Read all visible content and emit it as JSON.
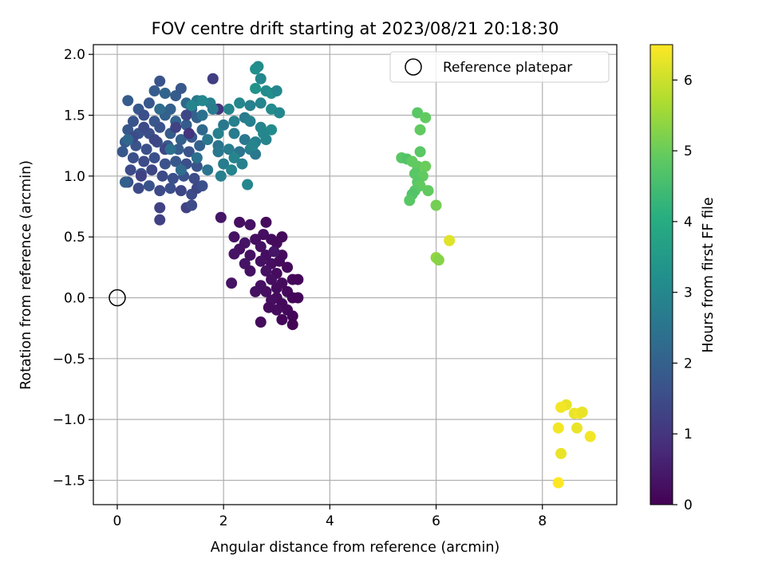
{
  "chart_data": {
    "type": "scatter",
    "title": "FOV centre drift starting at 2023/08/21 20:18:30",
    "xlabel": "Angular distance from reference (arcmin)",
    "ylabel": "Rotation from reference (arcmin)",
    "xlim": [
      -0.45,
      9.4
    ],
    "ylim": [
      -1.7,
      2.08
    ],
    "xticks": [
      0,
      2,
      4,
      6,
      8
    ],
    "yticks": [
      -1.5,
      -1.0,
      -0.5,
      0.0,
      0.5,
      1.0,
      1.5,
      2.0
    ],
    "xtick_labels": [
      "0",
      "2",
      "4",
      "6",
      "8"
    ],
    "ytick_labels": [
      "−1.5",
      "−1.0",
      "−0.5",
      "0.0",
      "0.5",
      "1.0",
      "1.5",
      "2.0"
    ],
    "grid": true,
    "legend": {
      "placement": "top-right",
      "entries": [
        {
          "label": "Reference platepar",
          "marker": "open-circle"
        }
      ]
    },
    "reference_point": {
      "x": 0,
      "y": 0
    },
    "colormap": "viridis",
    "colorbar": {
      "label": "Hours from first FF file",
      "range": [
        0,
        6.5
      ],
      "ticks": [
        0,
        1,
        2,
        3,
        4,
        5,
        6
      ],
      "tick_labels": [
        "0",
        "1",
        "2",
        "3",
        "4",
        "5",
        "6"
      ]
    },
    "points": [
      [
        2.3,
        0.62,
        0.25
      ],
      [
        2.5,
        0.6,
        0.3
      ],
      [
        2.8,
        0.62,
        0.2
      ],
      [
        2.2,
        0.5,
        0.3
      ],
      [
        2.4,
        0.45,
        0.35
      ],
      [
        2.6,
        0.48,
        0.25
      ],
      [
        2.9,
        0.48,
        0.2
      ],
      [
        3.1,
        0.5,
        0.15
      ],
      [
        2.3,
        0.4,
        0.3
      ],
      [
        2.7,
        0.42,
        0.3
      ],
      [
        3.0,
        0.45,
        0.2
      ],
      [
        2.2,
        0.36,
        0.35
      ],
      [
        2.5,
        0.35,
        0.3
      ],
      [
        2.8,
        0.35,
        0.25
      ],
      [
        3.1,
        0.35,
        0.2
      ],
      [
        2.4,
        0.28,
        0.35
      ],
      [
        2.7,
        0.3,
        0.3
      ],
      [
        2.9,
        0.28,
        0.25
      ],
      [
        2.5,
        0.22,
        0.3
      ],
      [
        2.8,
        0.22,
        0.3
      ],
      [
        3.0,
        0.2,
        0.2
      ],
      [
        3.2,
        0.25,
        0.15
      ],
      [
        2.9,
        0.15,
        0.25
      ],
      [
        3.1,
        0.12,
        0.2
      ],
      [
        3.3,
        0.15,
        0.15
      ],
      [
        3.4,
        0.15,
        0.1
      ],
      [
        2.7,
        0.1,
        0.3
      ],
      [
        3.0,
        0.08,
        0.2
      ],
      [
        3.2,
        0.05,
        0.15
      ],
      [
        2.8,
        0.05,
        0.25
      ],
      [
        3.0,
        0.0,
        0.2
      ],
      [
        3.3,
        0.0,
        0.1
      ],
      [
        3.4,
        0.0,
        0.1
      ],
      [
        2.6,
        0.05,
        0.3
      ],
      [
        2.9,
        -0.02,
        0.25
      ],
      [
        3.1,
        -0.05,
        0.15
      ],
      [
        3.2,
        -0.1,
        0.15
      ],
      [
        3.0,
        -0.1,
        0.2
      ],
      [
        2.85,
        -0.08,
        0.2
      ],
      [
        3.3,
        -0.15,
        0.1
      ],
      [
        3.1,
        -0.18,
        0.1
      ],
      [
        3.3,
        -0.22,
        0.05
      ],
      [
        2.7,
        -0.2,
        0.2
      ],
      [
        2.15,
        0.12,
        0.35
      ],
      [
        1.95,
        0.66,
        0.4
      ],
      [
        2.75,
        0.52,
        0.25
      ],
      [
        3.05,
        0.3,
        0.2
      ],
      [
        2.95,
        0.38,
        0.4
      ],
      [
        0.7,
        1.7,
        1.9
      ],
      [
        0.8,
        1.78,
        1.7
      ],
      [
        0.2,
        1.62,
        1.9
      ],
      [
        0.4,
        1.55,
        1.8
      ],
      [
        0.6,
        1.6,
        1.8
      ],
      [
        1.0,
        1.55,
        2.0
      ],
      [
        1.2,
        1.72,
        1.8
      ],
      [
        0.9,
        1.68,
        2.1
      ],
      [
        1.1,
        1.66,
        1.9
      ],
      [
        1.3,
        1.6,
        2.2
      ],
      [
        1.4,
        1.55,
        2.0
      ],
      [
        0.3,
        1.45,
        1.7
      ],
      [
        0.5,
        1.5,
        1.6
      ],
      [
        0.7,
        1.45,
        1.8
      ],
      [
        0.9,
        1.5,
        2.0
      ],
      [
        1.1,
        1.45,
        2.1
      ],
      [
        1.3,
        1.42,
        1.9
      ],
      [
        1.5,
        1.48,
        2.0
      ],
      [
        0.2,
        1.38,
        1.8
      ],
      [
        0.4,
        1.35,
        1.7
      ],
      [
        0.6,
        1.35,
        1.6
      ],
      [
        0.8,
        1.4,
        1.7
      ],
      [
        1.0,
        1.35,
        1.9
      ],
      [
        1.2,
        1.3,
        2.0
      ],
      [
        1.4,
        1.32,
        1.8
      ],
      [
        1.6,
        1.38,
        2.2
      ],
      [
        0.15,
        1.28,
        1.8
      ],
      [
        0.35,
        1.25,
        1.7
      ],
      [
        0.55,
        1.22,
        1.6
      ],
      [
        0.75,
        1.28,
        1.5
      ],
      [
        0.95,
        1.25,
        1.8
      ],
      [
        1.15,
        1.22,
        1.9
      ],
      [
        1.35,
        1.2,
        1.7
      ],
      [
        1.55,
        1.25,
        2.0
      ],
      [
        0.1,
        1.2,
        1.8
      ],
      [
        0.3,
        1.15,
        1.6
      ],
      [
        0.5,
        1.12,
        1.5
      ],
      [
        0.7,
        1.15,
        1.6
      ],
      [
        0.9,
        1.1,
        1.7
      ],
      [
        1.1,
        1.12,
        1.8
      ],
      [
        1.3,
        1.1,
        1.6
      ],
      [
        1.5,
        1.08,
        1.7
      ],
      [
        0.25,
        1.05,
        1.5
      ],
      [
        0.45,
        1.02,
        1.6
      ],
      [
        0.65,
        1.05,
        1.4
      ],
      [
        0.85,
        1.0,
        1.5
      ],
      [
        1.05,
        0.98,
        1.6
      ],
      [
        1.25,
        1.0,
        1.7
      ],
      [
        1.45,
        0.98,
        1.5
      ],
      [
        0.2,
        0.95,
        1.6
      ],
      [
        0.4,
        0.9,
        1.5
      ],
      [
        0.6,
        0.92,
        1.7
      ],
      [
        0.8,
        0.88,
        1.5
      ],
      [
        1.0,
        0.9,
        1.6
      ],
      [
        1.2,
        0.88,
        1.4
      ],
      [
        1.4,
        0.85,
        1.5
      ],
      [
        1.5,
        0.9,
        1.4
      ],
      [
        1.6,
        0.92,
        1.6
      ],
      [
        0.8,
        0.74,
        1.3
      ],
      [
        0.8,
        0.64,
        1.3
      ],
      [
        1.3,
        0.74,
        1.3
      ],
      [
        1.4,
        0.76,
        1.5
      ],
      [
        0.7,
        1.3,
        1.4
      ],
      [
        0.5,
        1.4,
        1.5
      ],
      [
        0.3,
        1.32,
        1.5
      ],
      [
        1.1,
        1.4,
        1.3
      ],
      [
        1.3,
        1.5,
        1.4
      ],
      [
        0.9,
        1.22,
        1.4
      ],
      [
        1.8,
        1.8,
        1.2
      ],
      [
        1.6,
        1.5,
        2.4
      ],
      [
        1.7,
        1.3,
        2.6
      ],
      [
        1.9,
        1.25,
        2.5
      ],
      [
        1.5,
        1.15,
        2.4
      ],
      [
        1.7,
        1.05,
        2.5
      ],
      [
        1.9,
        1.2,
        2.6
      ],
      [
        1.2,
        1.05,
        2.3
      ],
      [
        1.0,
        1.22,
        2.4
      ],
      [
        0.8,
        1.55,
        2.3
      ],
      [
        1.5,
        1.62,
        2.6
      ],
      [
        1.75,
        1.6,
        2.8
      ],
      [
        0.15,
        0.95,
        2.0
      ],
      [
        0.2,
        1.3,
        2.2
      ],
      [
        1.9,
        1.55,
        1.0
      ],
      [
        1.35,
        1.35,
        1.0
      ],
      [
        0.45,
        1.0,
        1.3
      ],
      [
        2.65,
        1.9,
        3.1
      ],
      [
        2.6,
        1.88,
        3.2
      ],
      [
        2.7,
        1.8,
        3.0
      ],
      [
        2.6,
        1.72,
        3.3
      ],
      [
        2.8,
        1.7,
        3.1
      ],
      [
        2.9,
        1.68,
        3.2
      ],
      [
        3.0,
        1.7,
        3.0
      ],
      [
        2.7,
        1.6,
        2.9
      ],
      [
        2.9,
        1.55,
        3.1
      ],
      [
        3.05,
        1.52,
        3.0
      ],
      [
        2.5,
        1.58,
        2.8
      ],
      [
        2.3,
        1.6,
        3.0
      ],
      [
        2.1,
        1.55,
        2.9
      ],
      [
        2.4,
        1.48,
        2.7
      ],
      [
        2.2,
        1.45,
        2.8
      ],
      [
        2.0,
        1.42,
        2.6
      ],
      [
        2.5,
        1.45,
        2.8
      ],
      [
        2.7,
        1.4,
        2.9
      ],
      [
        2.9,
        1.38,
        3.1
      ],
      [
        2.2,
        1.35,
        2.7
      ],
      [
        2.4,
        1.3,
        2.6
      ],
      [
        2.6,
        1.28,
        2.8
      ],
      [
        2.8,
        1.3,
        2.9
      ],
      [
        2.1,
        1.22,
        2.7
      ],
      [
        2.3,
        1.2,
        2.5
      ],
      [
        2.5,
        1.22,
        2.8
      ],
      [
        2.6,
        1.18,
        2.6
      ],
      [
        2.2,
        1.15,
        2.9
      ],
      [
        2.0,
        1.1,
        2.7
      ],
      [
        2.35,
        1.1,
        2.8
      ],
      [
        2.45,
        0.93,
        3.0
      ],
      [
        1.9,
        1.35,
        2.8
      ],
      [
        1.8,
        1.55,
        2.7
      ],
      [
        1.6,
        1.62,
        3.0
      ],
      [
        1.4,
        1.58,
        2.9
      ],
      [
        1.95,
        1.0,
        2.8
      ],
      [
        2.15,
        1.05,
        2.9
      ],
      [
        2.55,
        1.25,
        2.9
      ],
      [
        2.75,
        1.35,
        3.0
      ],
      [
        5.65,
        1.52,
        4.8
      ],
      [
        5.8,
        1.48,
        4.9
      ],
      [
        5.7,
        1.38,
        4.9
      ],
      [
        5.35,
        1.15,
        4.8
      ],
      [
        5.45,
        1.14,
        4.7
      ],
      [
        5.55,
        1.12,
        4.9
      ],
      [
        5.7,
        1.2,
        4.8
      ],
      [
        5.65,
        1.08,
        4.9
      ],
      [
        5.8,
        1.08,
        5.0
      ],
      [
        5.6,
        1.02,
        4.8
      ],
      [
        5.75,
        1.0,
        4.9
      ],
      [
        5.65,
        0.95,
        4.8
      ],
      [
        5.7,
        0.92,
        4.9
      ],
      [
        5.6,
        0.88,
        4.8
      ],
      [
        5.55,
        0.85,
        4.7
      ],
      [
        5.85,
        0.88,
        4.9
      ],
      [
        5.5,
        0.8,
        4.8
      ],
      [
        6.0,
        0.76,
        5.1
      ],
      [
        6.0,
        0.33,
        5.4
      ],
      [
        6.05,
        0.31,
        5.3
      ],
      [
        6.25,
        0.47,
        6.2
      ],
      [
        8.45,
        -0.88,
        6.3
      ],
      [
        8.35,
        -0.9,
        6.4
      ],
      [
        8.6,
        -0.95,
        6.3
      ],
      [
        8.7,
        -0.95,
        6.4
      ],
      [
        8.75,
        -0.94,
        6.3
      ],
      [
        8.3,
        -1.07,
        6.4
      ],
      [
        8.65,
        -1.07,
        6.3
      ],
      [
        8.9,
        -1.14,
        6.4
      ],
      [
        8.35,
        -1.28,
        6.3
      ],
      [
        8.3,
        -1.52,
        6.5
      ]
    ]
  }
}
